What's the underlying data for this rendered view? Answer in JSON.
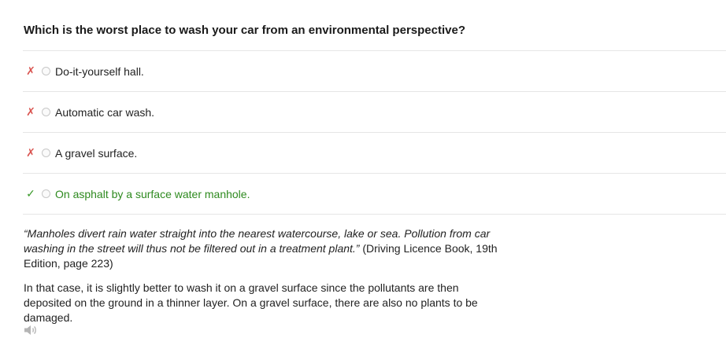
{
  "question": "Which is the worst place to wash your car from an environmental perspective?",
  "answers": [
    {
      "mark": "✗",
      "label": "Do-it-yourself hall.",
      "status": "wrong"
    },
    {
      "mark": "✗",
      "label": "Automatic car wash.",
      "status": "wrong"
    },
    {
      "mark": "✗",
      "label": "A gravel surface.",
      "status": "wrong"
    },
    {
      "mark": "✓",
      "label": "On asphalt by a surface water manhole.",
      "status": "correct"
    }
  ],
  "explanation": {
    "quote": "“Manholes divert rain water straight into the nearest watercourse, lake or sea. Pollution from car washing in the street will thus not be filtered out in a treatment plant.”",
    "source": " (Driving Licence Book, 19th Edition, page 223)",
    "paragraph": "In that case, it is slightly better to wash it on a gravel surface since the pollutants are then deposited on the ground in a thinner layer. On a gravel surface, there are also no plants to be damaged."
  },
  "icons": {
    "audio": "speaker-icon"
  },
  "colors": {
    "wrong": "#d9534f",
    "correct": "#2e8a1f"
  }
}
